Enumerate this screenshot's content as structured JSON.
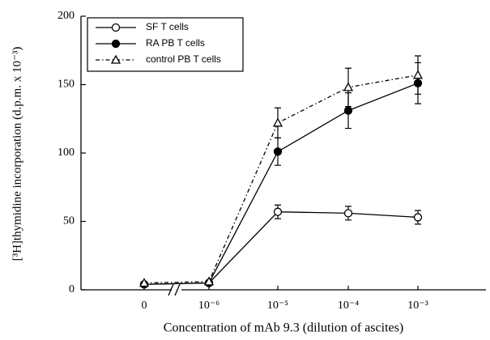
{
  "chart_data": {
    "type": "line",
    "xlabel": "Concentration of mAb 9.3 (dilution of ascites)",
    "ylabel": "[³H]thymidine incorporation (d.p.m. x 10⁻³)",
    "categories": [
      "0",
      "10⁻⁶",
      "10⁻⁵",
      "10⁻⁴",
      "10⁻³"
    ],
    "axis_break": true,
    "ylim": [
      0,
      200
    ],
    "yticks": [
      0,
      50,
      100,
      150,
      200
    ],
    "legend": "upper left",
    "series": [
      {
        "name": "SF T cells",
        "color": "#000000",
        "marker": "open-circle",
        "linestyle": "solid",
        "values": [
          4,
          5,
          57,
          56,
          53
        ],
        "errors": [
          null,
          null,
          5,
          5,
          5
        ]
      },
      {
        "name": "RA PB T cells",
        "color": "#000000",
        "marker": "filled-circle",
        "linestyle": "solid",
        "values": [
          4,
          5,
          101,
          131,
          151
        ],
        "errors": [
          null,
          null,
          10,
          13,
          15
        ]
      },
      {
        "name": "control PB T cells",
        "color": "#000000",
        "marker": "open-triangle",
        "linestyle": "dashdot",
        "values": [
          5,
          6,
          122,
          148,
          157
        ],
        "errors": [
          null,
          null,
          11,
          14,
          14
        ]
      }
    ]
  }
}
